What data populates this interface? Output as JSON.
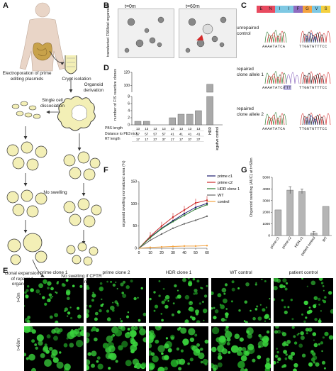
{
  "panels": {
    "A": "A",
    "B": "B",
    "C": "C",
    "D": "D",
    "E": "E",
    "F": "F",
    "G": "G"
  },
  "panelA": {
    "crypt_isolation": "Crypt isolation",
    "organoid_derivation": "Organoid derivation",
    "electroporation": "Electroporation of prime editing plasmids",
    "single_cell": "Single cell dissociation",
    "no_swelling": "No swelling",
    "clonal": "clonal expansion of repaired organoids",
    "no_swelling_cftr": "No swelling if CFTR channel is mutated"
  },
  "panelB": {
    "ylabel": "transfected F508del organoids",
    "t0": "t=0m",
    "t60": "t=60m"
  },
  "panelC": {
    "aa": [
      "E",
      "N",
      "I",
      "I",
      "F",
      "G",
      "V",
      "S"
    ],
    "aa_colors": [
      "#e84a5f",
      "#e84a5f",
      "#7ec8e3",
      "#7ec8e3",
      "#8e6bbf",
      "#f4a340",
      "#7ec8e3",
      "#f4d03f"
    ],
    "labels": [
      "unrepaired control",
      "repaired clone allele 1",
      "repaired clone allele 2"
    ],
    "seq_left": "AAAATATCA",
    "seq_right": "TTGGTGTTTCC",
    "seq_insert": "TTT"
  },
  "panelD": {
    "chart_data": {
      "type": "bar",
      "ylabel": "number of FIS reactive clones",
      "values": [
        1,
        1,
        0,
        0,
        2,
        3,
        3,
        4,
        102
      ],
      "yticks": [
        "0",
        "2",
        "4",
        "6",
        "8",
        "100",
        "120"
      ],
      "categories_pbs": [
        "13",
        "13",
        "13",
        "13",
        "13",
        "13",
        "13",
        "13"
      ],
      "categories_pe3": [
        "57",
        "57",
        "57",
        "57",
        "41",
        "41",
        "41",
        "41"
      ],
      "categories_rt": [
        "17",
        "17",
        "37",
        "37",
        "17",
        "17",
        "37",
        "37"
      ],
      "row_labels": [
        "PBS length",
        "Distance to PE3 nick",
        "RT length"
      ],
      "hdr_label": "HDR",
      "neg_label": "Negative control"
    }
  },
  "panelF": {
    "chart_data": {
      "type": "line",
      "ylabel": "organoid swelling normalized area (%)",
      "xticks": [
        "0",
        "10",
        "20",
        "30",
        "40",
        "50",
        "60"
      ],
      "yticks": [
        "0",
        "50",
        "100",
        "150"
      ],
      "x": [
        0,
        10,
        20,
        30,
        40,
        50,
        60
      ],
      "ylim": [
        0,
        150
      ],
      "series": [
        {
          "name": "prime c1",
          "color": "#1a1a6e",
          "values": [
            0,
            25,
            45,
            62,
            78,
            92,
            101
          ]
        },
        {
          "name": "prime c2",
          "color": "#cc2a2a",
          "values": [
            0,
            27,
            50,
            70,
            86,
            102,
            108
          ]
        },
        {
          "name": "HDR clone 1",
          "color": "#2e7d32",
          "values": [
            0,
            24,
            44,
            60,
            74,
            88,
            98
          ]
        },
        {
          "name": "WT",
          "color": "#666666",
          "values": [
            0,
            18,
            32,
            45,
            55,
            63,
            72
          ]
        },
        {
          "name": "control",
          "color": "#f4a340",
          "values": [
            0,
            2,
            3,
            4,
            5,
            5,
            6
          ]
        }
      ]
    }
  },
  "panelG": {
    "chart_data": {
      "type": "bar",
      "ylabel": "Organoid swelling (AUC) at t=60m",
      "categories": [
        "prime c1",
        "prime c2",
        "HDR c1",
        "patient control",
        "WT"
      ],
      "values": [
        2200,
        3900,
        3800,
        200,
        2500
      ],
      "errors": [
        0,
        300,
        200,
        150,
        0
      ],
      "yticks": [
        "0",
        "1000",
        "2000",
        "3000",
        "4000",
        "5000"
      ],
      "ylim": [
        0,
        5000
      ]
    }
  },
  "panelE": {
    "columns": [
      "prime clone 1",
      "prime clone 2",
      "HDR clone 1",
      "WT control",
      "patient control"
    ],
    "rows": [
      "t=0m",
      "t=60m"
    ]
  }
}
